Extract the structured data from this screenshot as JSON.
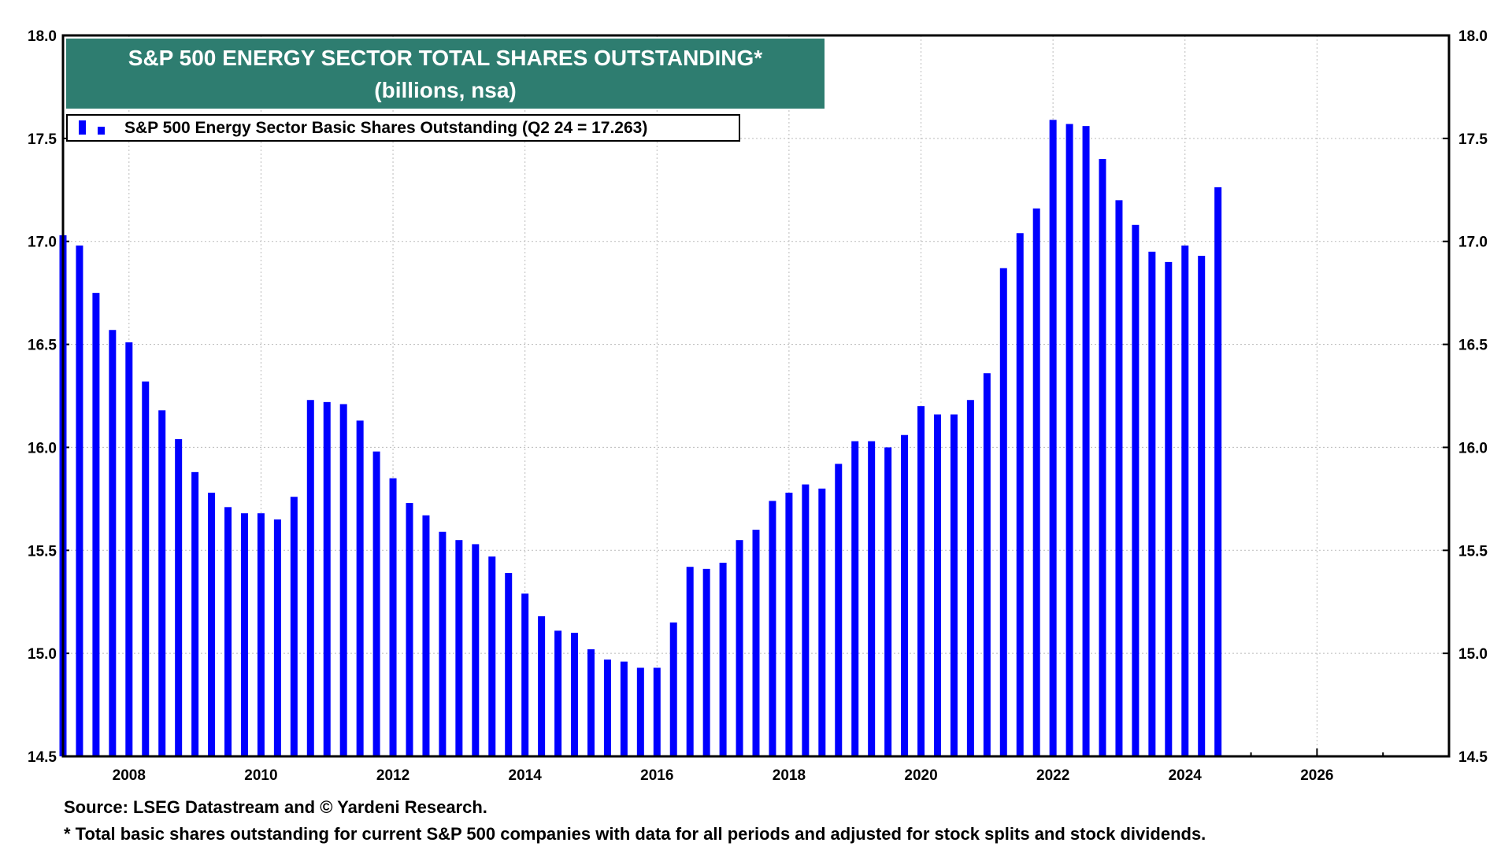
{
  "chart_data": {
    "type": "bar",
    "title": "S&P 500 ENERGY SECTOR TOTAL SHARES OUTSTANDING*",
    "subtitle": "(billions, nsa)",
    "legend": {
      "label": "S&P 500 Energy Sector Basic Shares Outstanding (Q2 24 = 17.263)",
      "placement": "top-left"
    },
    "series_color": "#0000ff",
    "frequency": "quarterly",
    "start_quarter": "Q4 2006",
    "end_quarter": "Q2 2024",
    "values": [
      17.03,
      16.98,
      16.75,
      16.57,
      16.51,
      16.32,
      16.18,
      16.04,
      15.88,
      15.78,
      15.71,
      15.68,
      15.68,
      15.65,
      15.76,
      16.23,
      16.22,
      16.21,
      16.13,
      15.98,
      15.85,
      15.73,
      15.67,
      15.59,
      15.55,
      15.53,
      15.47,
      15.39,
      15.29,
      15.18,
      15.11,
      15.1,
      15.02,
      14.97,
      14.96,
      14.93,
      14.93,
      15.15,
      15.42,
      15.41,
      15.44,
      15.55,
      15.6,
      15.74,
      15.78,
      15.82,
      15.8,
      15.92,
      16.03,
      16.03,
      16.0,
      16.06,
      16.2,
      16.16,
      16.16,
      16.23,
      16.36,
      16.87,
      17.04,
      17.16,
      17.59,
      17.57,
      17.56,
      17.4,
      17.2,
      17.08,
      16.95,
      16.9,
      16.98,
      16.93,
      17.263
    ],
    "xlim": [
      2007,
      2028
    ],
    "ylim": [
      14.5,
      18.0
    ],
    "x_ticks": [
      "2008",
      "2010",
      "2012",
      "2014",
      "2016",
      "2018",
      "2020",
      "2022",
      "2024",
      "2026"
    ],
    "y_ticks": [
      "14.5",
      "15.0",
      "15.5",
      "16.0",
      "16.5",
      "17.0",
      "17.5",
      "18.0"
    ],
    "grid": true,
    "y_axis_both_sides": true
  },
  "footer": {
    "source": "Source: LSEG Datastream and © Yardeni Research.",
    "note": "* Total basic shares outstanding for current S&P 500 companies with data for all periods and adjusted for stock splits and stock dividends."
  }
}
